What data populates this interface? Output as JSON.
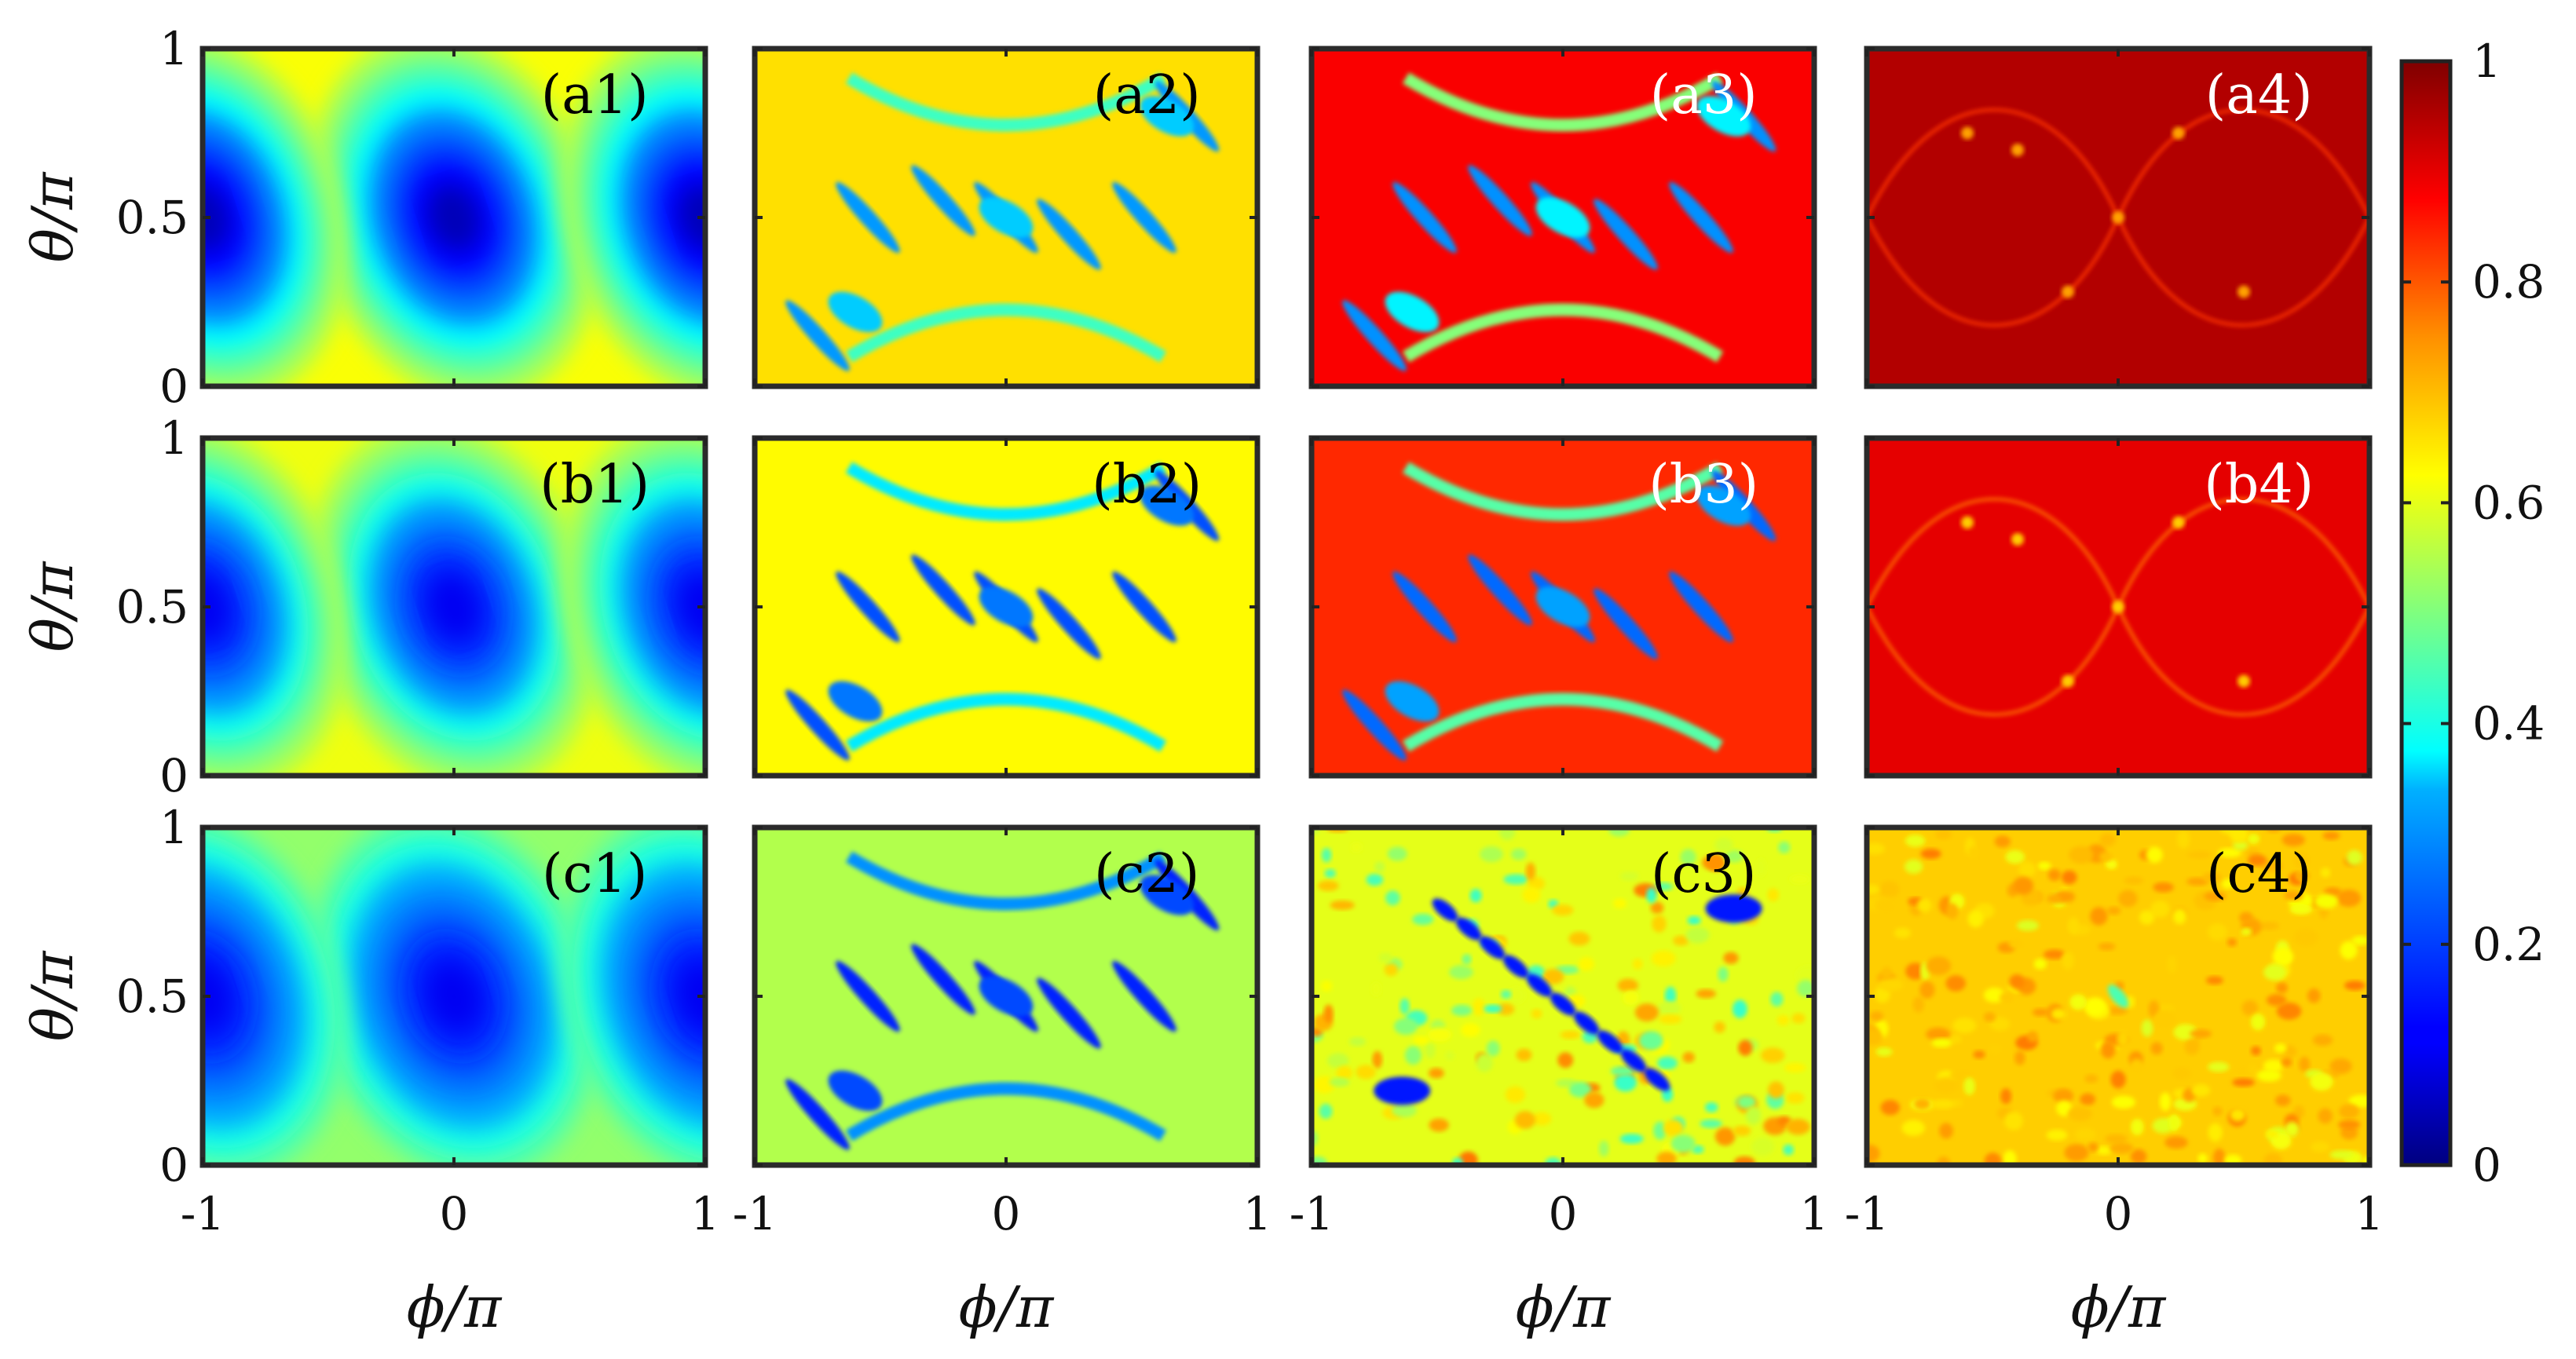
{
  "chart_data": {
    "type": "heatmap",
    "xlabel": "ϕ/π",
    "ylabel": "θ/π",
    "xlim": [
      -1,
      1
    ],
    "ylim": [
      0,
      1
    ],
    "x_tick_labels": [
      "-1",
      "0",
      "1"
    ],
    "y_tick_labels": [
      "0",
      "0.5",
      "1"
    ],
    "colorbar": {
      "colormap": "jet",
      "range": [
        0,
        1
      ],
      "tick_labels": [
        "0",
        "0.2",
        "0.4",
        "0.6",
        "0.8",
        "1"
      ]
    },
    "panels": [
      {
        "label": "(a1)",
        "row": 0,
        "col": 0,
        "base_level": 0.62,
        "min_level": 0.05,
        "pattern": "smooth",
        "label_color": "#000000"
      },
      {
        "label": "(a2)",
        "row": 0,
        "col": 1,
        "base_level": 0.66,
        "min_level": 0.25,
        "pattern": "bands",
        "label_color": "#000000"
      },
      {
        "label": "(a3)",
        "row": 0,
        "col": 2,
        "base_level": 0.88,
        "min_level": 0.2,
        "pattern": "bands",
        "label_color": "#ffffff"
      },
      {
        "label": "(a4)",
        "row": 0,
        "col": 3,
        "base_level": 0.95,
        "min_level": 0.8,
        "pattern": "lines",
        "label_color": "#ffffff"
      },
      {
        "label": "(b1)",
        "row": 1,
        "col": 0,
        "base_level": 0.61,
        "min_level": 0.1,
        "pattern": "smooth",
        "label_color": "#000000"
      },
      {
        "label": "(b2)",
        "row": 1,
        "col": 1,
        "base_level": 0.63,
        "min_level": 0.15,
        "pattern": "bands",
        "label_color": "#000000"
      },
      {
        "label": "(b3)",
        "row": 1,
        "col": 2,
        "base_level": 0.84,
        "min_level": 0.15,
        "pattern": "bands",
        "label_color": "#ffffff"
      },
      {
        "label": "(b4)",
        "row": 1,
        "col": 3,
        "base_level": 0.9,
        "min_level": 0.75,
        "pattern": "lines",
        "label_color": "#ffffff"
      },
      {
        "label": "(c1)",
        "row": 2,
        "col": 0,
        "base_level": 0.52,
        "min_level": 0.1,
        "pattern": "smooth",
        "label_color": "#000000"
      },
      {
        "label": "(c2)",
        "row": 2,
        "col": 1,
        "base_level": 0.55,
        "min_level": 0.1,
        "pattern": "bands",
        "label_color": "#000000"
      },
      {
        "label": "(c3)",
        "row": 2,
        "col": 2,
        "base_level": 0.6,
        "min_level": 0.1,
        "pattern": "speckle",
        "label_color": "#000000"
      },
      {
        "label": "(c4)",
        "row": 2,
        "col": 3,
        "base_level": 0.68,
        "min_level": 0.4,
        "pattern": "speckle_dense",
        "label_color": "#000000"
      }
    ]
  }
}
